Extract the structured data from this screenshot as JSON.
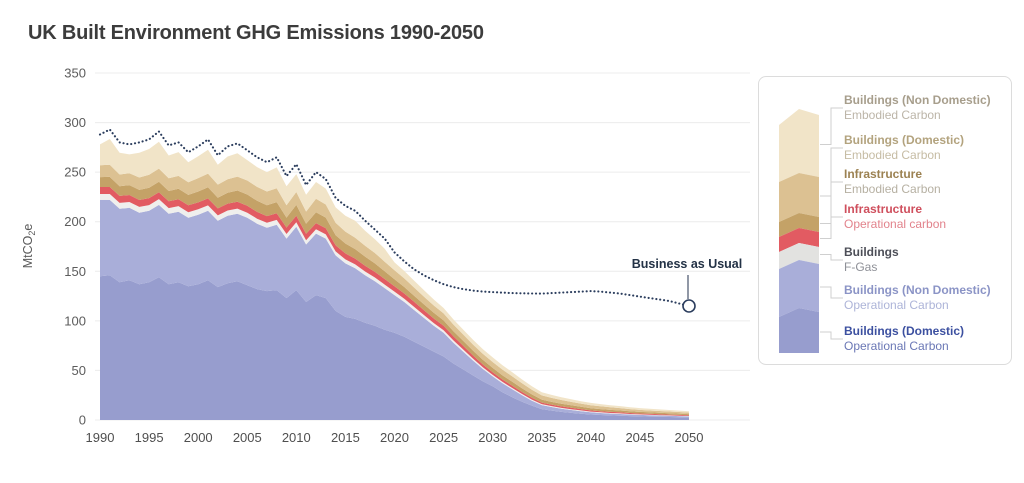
{
  "title": "UK Built Environment GHG Emissions 1990-2050",
  "chart_data": {
    "type": "area",
    "stacked": true,
    "grid": true,
    "legend_position": "right",
    "ylabel": {
      "pre": "MtCO",
      "sub": "2",
      "post": "e"
    },
    "ylim": [
      0,
      350
    ],
    "y_ticks": [
      0,
      50,
      100,
      150,
      200,
      250,
      300,
      350
    ],
    "x_ticks": [
      1990,
      1995,
      2000,
      2005,
      2010,
      2015,
      2020,
      2025,
      2030,
      2035,
      2040,
      2045,
      2050
    ],
    "years": [
      1990,
      1991,
      1992,
      1993,
      1994,
      1995,
      1996,
      1997,
      1998,
      1999,
      2000,
      2001,
      2002,
      2003,
      2004,
      2005,
      2006,
      2007,
      2008,
      2009,
      2010,
      2011,
      2012,
      2013,
      2014,
      2015,
      2016,
      2017,
      2018,
      2019,
      2020,
      2021,
      2022,
      2023,
      2024,
      2025,
      2026,
      2027,
      2028,
      2029,
      2030,
      2031,
      2032,
      2033,
      2034,
      2035,
      2036,
      2037,
      2038,
      2039,
      2040,
      2041,
      2042,
      2043,
      2044,
      2045,
      2046,
      2047,
      2048,
      2049,
      2050
    ],
    "series": [
      {
        "key": "buildings-domestic-operational",
        "name": "Buildings (Domestic) Operational Carbon",
        "color": "#979dce",
        "values": [
          145,
          146,
          139,
          141,
          137,
          139,
          144,
          137,
          139,
          135,
          137,
          141,
          134,
          138,
          140,
          136,
          132,
          130,
          131,
          123,
          131,
          119,
          126,
          123,
          110,
          104,
          102,
          98,
          95,
          91,
          88,
          84,
          79,
          74,
          69,
          64,
          57,
          51,
          45,
          39,
          34,
          28,
          23,
          18.5,
          14.5,
          11,
          9.5,
          8.2,
          7.2,
          6.3,
          5.5,
          5,
          4.6,
          4.3,
          3.9,
          3.6,
          3.4,
          3.2,
          3,
          2.8,
          2.6
        ]
      },
      {
        "key": "buildings-non-domestic-operational",
        "name": "Buildings (Non Domestic) Operational Carbon",
        "color": "#a9aed9",
        "values": [
          77,
          76,
          74,
          73,
          72,
          72,
          73,
          71,
          71,
          69,
          70,
          70,
          67,
          68,
          68,
          68,
          66,
          64,
          66,
          60,
          64,
          58,
          62,
          60,
          56,
          54,
          51,
          48,
          45,
          42,
          38,
          35,
          32,
          29,
          26,
          24,
          21,
          18,
          15,
          12.5,
          10,
          9,
          8,
          6.5,
          5,
          4,
          3.6,
          3.2,
          2.9,
          2.6,
          2.3,
          2.1,
          1.9,
          1.8,
          1.6,
          1.5,
          1.4,
          1.3,
          1.2,
          1.1,
          1
        ]
      },
      {
        "key": "buildings-f-gas",
        "name": "Buildings F-Gas",
        "color": "#efefed",
        "values": [
          6,
          6,
          6,
          5.9,
          5.9,
          5.8,
          5.8,
          5.7,
          5.7,
          5.6,
          5.5,
          5.5,
          5.4,
          5.3,
          5.2,
          5.1,
          5,
          4.9,
          4.8,
          4.6,
          4.5,
          4.4,
          4.3,
          4.2,
          4.1,
          4,
          3.9,
          3.8,
          3.7,
          3.6,
          3.5,
          3.3,
          3.1,
          2.9,
          2.7,
          2.5,
          2.3,
          2.1,
          1.9,
          1.7,
          1.5,
          1.4,
          1.3,
          1.2,
          1.1,
          1,
          0.9,
          0.85,
          0.8,
          0.75,
          0.7,
          0.65,
          0.6,
          0.58,
          0.55,
          0.5,
          0.48,
          0.46,
          0.44,
          0.42,
          0.4
        ]
      },
      {
        "key": "infrastructure-operational",
        "name": "Infrastructure Operational carbon",
        "color": "#e25b62",
        "values": [
          7,
          7,
          7,
          7,
          7,
          7,
          7,
          7,
          7,
          7,
          7,
          7,
          7,
          7,
          7,
          7,
          6.9,
          6.8,
          6.8,
          6.6,
          6.5,
          6.4,
          6.3,
          6.2,
          6.1,
          6,
          5.9,
          5.8,
          5.7,
          5.6,
          5.5,
          5.3,
          5.1,
          4.9,
          4.7,
          4.5,
          4.1,
          3.7,
          3.3,
          2.9,
          2.6,
          2.4,
          2.2,
          2,
          1.8,
          1.6,
          1.5,
          1.45,
          1.4,
          1.3,
          1.2,
          1.15,
          1.1,
          1.05,
          1,
          1,
          0.95,
          0.9,
          0.85,
          0.82,
          0.8
        ]
      },
      {
        "key": "infrastructure-embodied",
        "name": "Infrastructure Embodied Carbon",
        "color": "#c4a267",
        "values": [
          10,
          10.2,
          9.8,
          10,
          10.2,
          10.5,
          10.6,
          10.3,
          10.5,
          10.4,
          11,
          11.2,
          10.8,
          11,
          11.3,
          11.3,
          11.2,
          11,
          11.2,
          10,
          11,
          10.2,
          11,
          10.8,
          10.3,
          10,
          9.6,
          9.2,
          8.6,
          7.8,
          7,
          6.6,
          6.2,
          5.9,
          5.7,
          5.5,
          5.2,
          5,
          4.8,
          4.6,
          4.4,
          4.2,
          4,
          3.7,
          3.4,
          3,
          2.8,
          2.7,
          2.5,
          2.35,
          2.2,
          2.1,
          2,
          1.9,
          1.75,
          1.6,
          1.5,
          1.4,
          1.35,
          1.28,
          1.2
        ]
      },
      {
        "key": "buildings-domestic-embodied",
        "name": "Buildings (Domestic) Embodied Carbon",
        "color": "#dcc192",
        "values": [
          12,
          12.2,
          11.8,
          12,
          12.5,
          13,
          13.2,
          12.8,
          13,
          12.9,
          13.5,
          13.8,
          13.2,
          13.5,
          14,
          14.2,
          14,
          13.8,
          14,
          12.5,
          13,
          12.2,
          13.5,
          13.2,
          12.4,
          12,
          11.5,
          11,
          10.4,
          9.7,
          9,
          8.6,
          8.2,
          7.8,
          7.4,
          7,
          6.7,
          6.4,
          6.2,
          6.1,
          6,
          5.8,
          5.5,
          5.1,
          4.7,
          4.2,
          4,
          3.8,
          3.5,
          3.2,
          3,
          2.8,
          2.6,
          2.4,
          2.2,
          2,
          1.9,
          1.8,
          1.7,
          1.6,
          1.5
        ]
      },
      {
        "key": "buildings-non-domestic-embodied",
        "name": "Buildings (Non Domestic) Embodied Carbon",
        "color": "#f1e4c8",
        "values": [
          21,
          26,
          22,
          19,
          25,
          26,
          27,
          23,
          24,
          20,
          22,
          24,
          20,
          23,
          23.5,
          20.5,
          20,
          19.5,
          21,
          19,
          18,
          17,
          17,
          16,
          15.5,
          16,
          17,
          15,
          14,
          13,
          8,
          7.5,
          7,
          6.5,
          6,
          5.5,
          5.2,
          5,
          4.8,
          4.7,
          4.6,
          4.4,
          4.2,
          3.9,
          3.6,
          3.2,
          3,
          2.8,
          2.6,
          2.4,
          2.3,
          2.2,
          2.1,
          2,
          1.9,
          1.8,
          1.7,
          1.6,
          1.5,
          1.45,
          1.4
        ]
      }
    ],
    "overlay_line": {
      "name": "Business as Usual",
      "style": "dotted",
      "color": "#2c3e5e",
      "values": [
        288,
        293,
        280,
        278,
        280,
        283,
        291,
        277,
        280,
        270,
        276,
        283,
        267,
        276,
        279,
        272,
        265,
        260,
        265,
        246,
        258,
        237,
        250,
        243,
        224,
        216,
        211,
        201,
        192,
        183,
        169,
        160,
        152,
        146,
        141,
        137,
        134,
        132,
        130.5,
        129.5,
        129,
        128.5,
        128,
        127.8,
        127.6,
        127.5,
        128,
        128.5,
        129,
        129.5,
        130,
        129.5,
        128.5,
        127.5,
        126,
        124.5,
        123,
        121.5,
        120,
        117.5,
        115
      ]
    },
    "annotation": {
      "text": "Business as Usual",
      "x": 2050,
      "y": 115,
      "marker": "open-circle"
    }
  },
  "legend": {
    "items": [
      {
        "title": "Buildings (Non Domestic)",
        "subtitle": "Embodied Carbon",
        "title_color": "#a79e8c",
        "subtitle_color": "#bcb5a8",
        "swatch_color": "#f1e4c8"
      },
      {
        "title": "Buildings (Domestic)",
        "subtitle": "Embodied Carbon",
        "title_color": "#b3a37e",
        "subtitle_color": "#c6bca4",
        "swatch_color": "#dcc192"
      },
      {
        "title": "Infrastructure",
        "subtitle": "Embodied Carbon",
        "title_color": "#9c8252",
        "subtitle_color": "#b6b0a2",
        "swatch_color": "#c4a267"
      },
      {
        "title": "Infrastructure",
        "subtitle": "Operational carbon",
        "title_color": "#cf4f5d",
        "subtitle_color": "#e2838c",
        "swatch_color": "#e25b62"
      },
      {
        "title": "Buildings",
        "subtitle": "F-Gas",
        "title_color": "#4d4f58",
        "subtitle_color": "#8e9097",
        "swatch_color": "#e2e2e0"
      },
      {
        "title": "Buildings (Non Domestic)",
        "subtitle": "Operational Carbon",
        "title_color": "#8b94c6",
        "subtitle_color": "#adb4d8",
        "swatch_color": "#a9aed9"
      },
      {
        "title": "Buildings (Domestic)",
        "subtitle": "Operational Carbon",
        "title_color": "#3c50a0",
        "subtitle_color": "#6a77b5",
        "swatch_color": "#979dce"
      }
    ]
  }
}
